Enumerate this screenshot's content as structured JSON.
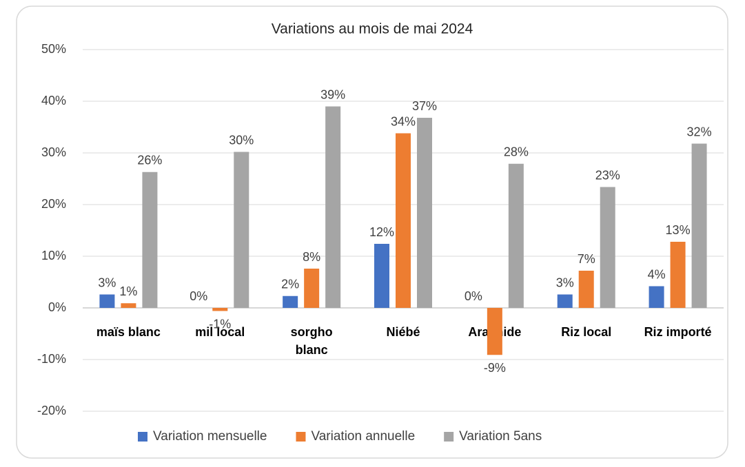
{
  "chart_data": {
    "type": "bar",
    "title": "Variations au mois de mai 2024",
    "categories": [
      "maïs blanc",
      "mil local",
      "sorgho\nblanc",
      "Niébé",
      "Arachide",
      "Riz local",
      "Riz importé"
    ],
    "series": [
      {
        "name": "Variation mensuelle",
        "color": "#4472c4",
        "values": [
          2.6,
          0,
          2.3,
          12.4,
          0,
          2.6,
          4.2
        ],
        "value_labels": [
          "3%",
          "0%",
          "2%",
          "12%",
          "0%",
          "3%",
          "4%"
        ]
      },
      {
        "name": "Variation annuelle",
        "color": "#ed7d31",
        "values": [
          0.9,
          -0.6,
          7.6,
          33.8,
          -9.1,
          7.2,
          12.8
        ],
        "value_labels": [
          "1%",
          "-1%",
          "8%",
          "34%",
          "-9%",
          "7%",
          "13%"
        ]
      },
      {
        "name": "Variation 5ans",
        "color": "#a5a5a5",
        "values": [
          26.3,
          30.2,
          39,
          36.8,
          27.9,
          23.4,
          31.8
        ],
        "value_labels": [
          "26%",
          "30%",
          "39%",
          "37%",
          "28%",
          "23%",
          "32%"
        ]
      }
    ],
    "ylim": [
      -20,
      50
    ],
    "yticks": [
      {
        "value": -20,
        "label": "-20%"
      },
      {
        "value": -10,
        "label": "-10%"
      },
      {
        "value": 0,
        "label": "0%"
      },
      {
        "value": 10,
        "label": "10%"
      },
      {
        "value": 20,
        "label": "20%"
      },
      {
        "value": 30,
        "label": "30%"
      },
      {
        "value": 40,
        "label": "40%"
      },
      {
        "value": 50,
        "label": "50%"
      }
    ],
    "grid": true,
    "legend": "bottom"
  }
}
